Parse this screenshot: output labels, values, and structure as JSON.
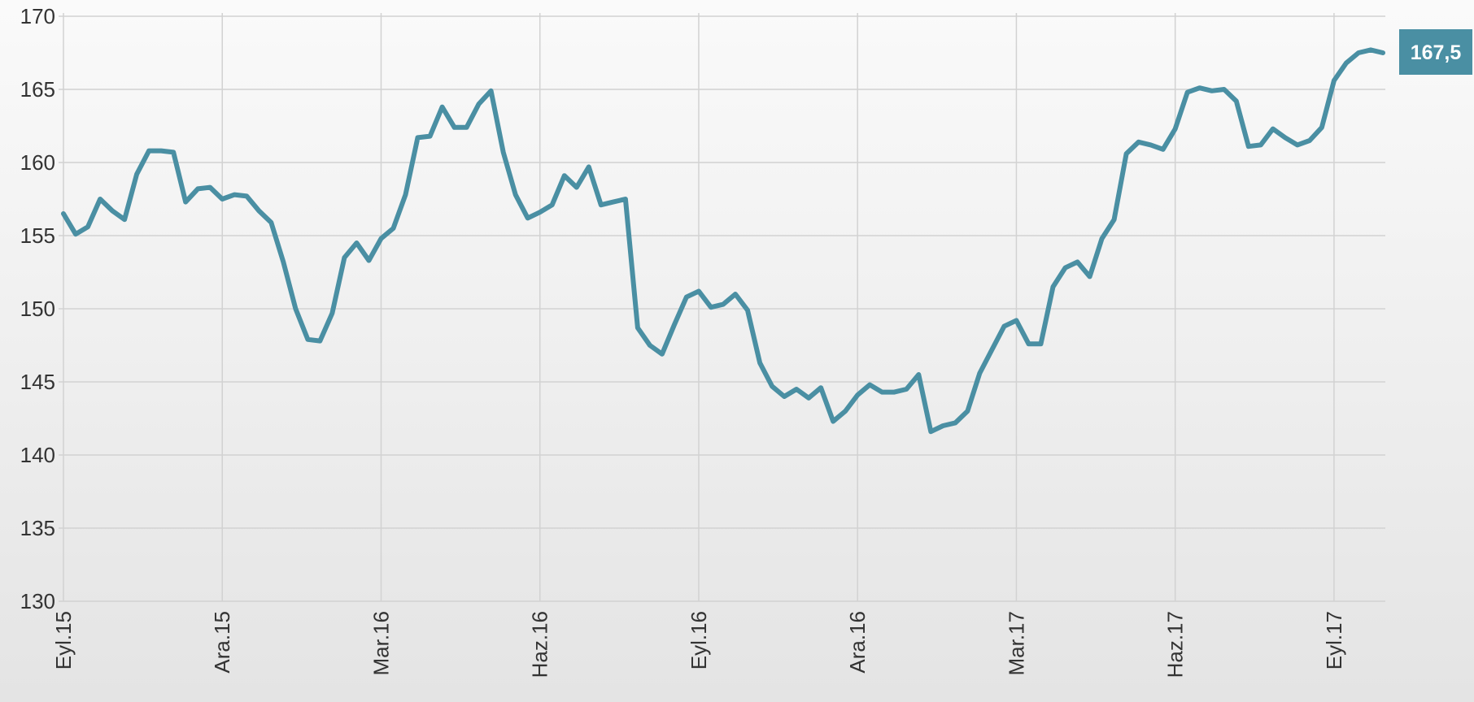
{
  "chart_data": {
    "type": "line",
    "title": "",
    "xlabel": "",
    "ylabel": "",
    "ylim": [
      130,
      170
    ],
    "yticks": [
      "130",
      "135",
      "140",
      "145",
      "150",
      "155",
      "160",
      "165",
      "170"
    ],
    "xtick_labels": [
      "Eyl.15",
      "Ara.15",
      "Mar.16",
      "Haz.16",
      "Eyl.16",
      "Ara.16",
      "Mar.17",
      "Haz.17",
      "Eyl.17"
    ],
    "xtick_index": [
      0,
      13,
      26,
      39,
      52,
      65,
      78,
      91,
      104
    ],
    "grid": true,
    "legend": "none",
    "last_value_label": "167,5",
    "color": "#4a8fa3",
    "series": [
      {
        "values": [
          156.5,
          155.1,
          155.6,
          157.5,
          156.7,
          156.1,
          159.2,
          160.8,
          160.8,
          160.7,
          157.3,
          158.2,
          158.3,
          157.5,
          157.8,
          157.7,
          156.7,
          155.9,
          153.2,
          150.0,
          147.9,
          147.8,
          149.7,
          153.5,
          154.5,
          153.3,
          154.8,
          155.5,
          157.8,
          161.7,
          161.8,
          163.8,
          162.4,
          162.4,
          164.0,
          164.9,
          160.7,
          157.8,
          156.2,
          156.6,
          157.1,
          159.1,
          158.3,
          159.7,
          157.1,
          157.3,
          157.5,
          148.7,
          147.5,
          146.9,
          148.9,
          150.8,
          151.2,
          150.1,
          150.3,
          151.0,
          149.9,
          146.3,
          144.7,
          144.0,
          144.5,
          143.9,
          144.6,
          142.3,
          143.0,
          144.1,
          144.8,
          144.3,
          144.3,
          144.5,
          145.5,
          141.6,
          142.0,
          142.2,
          143.0,
          145.6,
          147.2,
          148.8,
          149.2,
          147.6,
          147.6,
          151.5,
          152.8,
          153.2,
          152.2,
          154.8,
          156.1,
          160.6,
          161.4,
          161.2,
          160.9,
          162.3,
          164.8,
          165.1,
          164.9,
          165.0,
          164.2,
          161.1,
          161.2,
          162.3,
          161.7,
          161.2,
          161.5,
          162.4,
          165.6,
          166.8,
          167.5,
          167.7,
          167.5
        ]
      }
    ]
  }
}
